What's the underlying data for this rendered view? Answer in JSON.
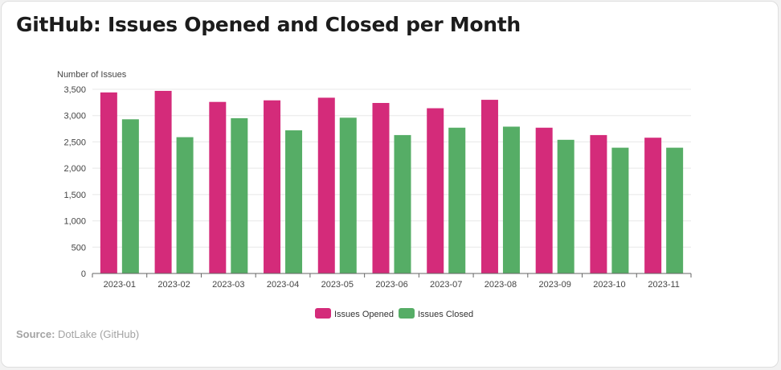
{
  "title": "GitHub: Issues Opened and Closed per Month",
  "source_label": "Source:",
  "source_text": "DotLake (GitHub)",
  "chart_data": {
    "type": "bar",
    "title": "GitHub: Issues Opened and Closed per Month",
    "xlabel": "",
    "ylabel": "Number of Issues",
    "categories": [
      "2023-01",
      "2023-02",
      "2023-03",
      "2023-04",
      "2023-05",
      "2023-06",
      "2023-07",
      "2023-08",
      "2023-09",
      "2023-10",
      "2023-11"
    ],
    "series": [
      {
        "name": "Issues Opened",
        "color": "#d42b7a",
        "values": [
          3440,
          3470,
          3260,
          3290,
          3340,
          3240,
          3140,
          3300,
          2770,
          2630,
          2580
        ]
      },
      {
        "name": "Issues Closed",
        "color": "#56ad66",
        "values": [
          2930,
          2590,
          2950,
          2720,
          2960,
          2630,
          2770,
          2790,
          2540,
          2390,
          2390
        ]
      }
    ],
    "ylim": [
      0,
      3500
    ],
    "yticks": [
      0,
      500,
      1000,
      1500,
      2000,
      2500,
      3000,
      3500
    ],
    "ytick_labels": [
      "0",
      "500",
      "1,000",
      "1,500",
      "2,000",
      "2,500",
      "3,000",
      "3,500"
    ],
    "grid": true,
    "legend_position": "bottom-center"
  }
}
